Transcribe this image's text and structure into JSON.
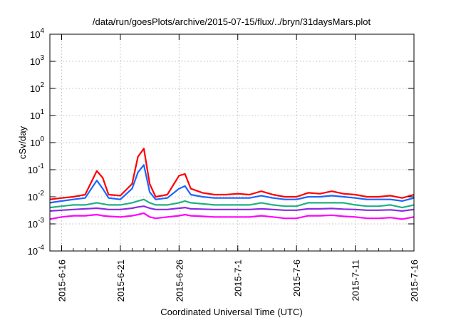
{
  "chart_data": {
    "type": "line",
    "title": "/data/run/goesPlots/archive/2015-07-15/flux/../bryn/31daysMars.plot",
    "xlabel": "Coordinated Universal Time (UTC)",
    "ylabel": "cSv/day",
    "yscale": "log",
    "ylim": [
      "1e-4",
      "1e4"
    ],
    "xlim": [
      "2015-06-15",
      "2015-07-16"
    ],
    "grid": true,
    "x_ticks": [
      {
        "date": "2015-06-16",
        "label": "2015-6-16"
      },
      {
        "date": "2015-06-21",
        "label": "2015-6-21"
      },
      {
        "date": "2015-06-26",
        "label": "2015-6-26"
      },
      {
        "date": "2015-07-01",
        "label": "2015-7-1"
      },
      {
        "date": "2015-07-06",
        "label": "2015-7-6"
      },
      {
        "date": "2015-07-11",
        "label": "2015-7-11"
      },
      {
        "date": "2015-07-16",
        "label": "2015-7-16"
      }
    ],
    "y_ticks": [
      {
        "value": 0.0001,
        "base": "10",
        "exp": "-4"
      },
      {
        "value": 0.001,
        "base": "10",
        "exp": "-3"
      },
      {
        "value": 0.01,
        "base": "10",
        "exp": "-2"
      },
      {
        "value": 0.1,
        "base": "10",
        "exp": "-1"
      },
      {
        "value": 1,
        "base": "10",
        "exp": "0"
      },
      {
        "value": 10,
        "base": "10",
        "exp": "1"
      },
      {
        "value": 100,
        "base": "10",
        "exp": "2"
      },
      {
        "value": 1000,
        "base": "10",
        "exp": "3"
      },
      {
        "value": 10000,
        "base": "10",
        "exp": "4"
      }
    ],
    "x": [
      "2015-06-15",
      "2015-06-16",
      "2015-06-17",
      "2015-06-18",
      "2015-06-19",
      "2015-06-19T12:00",
      "2015-06-20",
      "2015-06-21",
      "2015-06-22",
      "2015-06-22T12:00",
      "2015-06-23",
      "2015-06-23T12:00",
      "2015-06-24",
      "2015-06-25",
      "2015-06-26",
      "2015-06-26T12:00",
      "2015-06-27",
      "2015-06-28",
      "2015-06-29",
      "2015-06-30",
      "2015-07-01",
      "2015-07-02",
      "2015-07-03",
      "2015-07-04",
      "2015-07-05",
      "2015-07-06",
      "2015-07-07",
      "2015-07-08",
      "2015-07-09",
      "2015-07-10",
      "2015-07-11",
      "2015-07-12",
      "2015-07-13",
      "2015-07-14",
      "2015-07-15",
      "2015-07-16"
    ],
    "series": [
      {
        "color": "#ff0000",
        "values": [
          0.008,
          0.009,
          0.01,
          0.012,
          0.09,
          0.05,
          0.012,
          0.011,
          0.03,
          0.3,
          0.6,
          0.03,
          0.01,
          0.012,
          0.06,
          0.07,
          0.02,
          0.014,
          0.012,
          0.012,
          0.013,
          0.012,
          0.016,
          0.012,
          0.01,
          0.01,
          0.014,
          0.013,
          0.016,
          0.013,
          0.012,
          0.01,
          0.01,
          0.011,
          0.009,
          0.012
        ]
      },
      {
        "color": "#1a66ff",
        "values": [
          0.006,
          0.007,
          0.008,
          0.009,
          0.04,
          0.02,
          0.009,
          0.008,
          0.02,
          0.08,
          0.15,
          0.015,
          0.008,
          0.009,
          0.02,
          0.025,
          0.012,
          0.01,
          0.009,
          0.009,
          0.009,
          0.009,
          0.011,
          0.009,
          0.008,
          0.008,
          0.01,
          0.01,
          0.011,
          0.01,
          0.009,
          0.008,
          0.008,
          0.008,
          0.007,
          0.009
        ]
      },
      {
        "color": "#20b080",
        "values": [
          0.004,
          0.0045,
          0.005,
          0.005,
          0.006,
          0.0055,
          0.005,
          0.005,
          0.006,
          0.007,
          0.008,
          0.006,
          0.005,
          0.005,
          0.006,
          0.007,
          0.006,
          0.0055,
          0.005,
          0.005,
          0.005,
          0.005,
          0.006,
          0.005,
          0.0045,
          0.0045,
          0.006,
          0.006,
          0.006,
          0.006,
          0.005,
          0.0045,
          0.0045,
          0.005,
          0.004,
          0.005
        ]
      },
      {
        "color": "#8a2be2",
        "values": [
          0.003,
          0.0032,
          0.0034,
          0.0036,
          0.0038,
          0.0036,
          0.0034,
          0.0034,
          0.0038,
          0.0042,
          0.0045,
          0.0038,
          0.0034,
          0.0034,
          0.0038,
          0.004,
          0.0036,
          0.0035,
          0.0034,
          0.0034,
          0.0034,
          0.0034,
          0.0036,
          0.0034,
          0.0032,
          0.0032,
          0.0036,
          0.0036,
          0.0037,
          0.0035,
          0.0034,
          0.0032,
          0.0032,
          0.0033,
          0.003,
          0.0034
        ]
      },
      {
        "color": "#ff00ff",
        "values": [
          0.0015,
          0.0018,
          0.002,
          0.002,
          0.0022,
          0.002,
          0.0019,
          0.0018,
          0.002,
          0.0022,
          0.0025,
          0.0018,
          0.0016,
          0.0018,
          0.002,
          0.0022,
          0.002,
          0.0019,
          0.0018,
          0.0018,
          0.0018,
          0.0018,
          0.002,
          0.0018,
          0.0016,
          0.0016,
          0.002,
          0.002,
          0.0021,
          0.0019,
          0.0018,
          0.0016,
          0.0016,
          0.0017,
          0.0015,
          0.0018
        ]
      }
    ]
  }
}
